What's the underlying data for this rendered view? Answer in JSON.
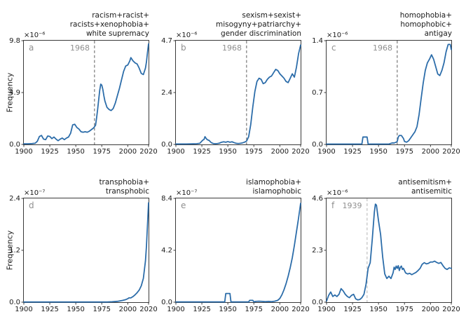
{
  "figure": {
    "ylabel": "Frequency",
    "line_color": "#2b6ca9",
    "axis_color": "#3a3a3a",
    "text_color": "#1a1a1a",
    "muted_color": "#8f8f8f",
    "x_ticks": [
      "1900",
      "1925",
      "1950",
      "1975",
      "2000",
      "2020"
    ],
    "xlim": [
      1900,
      2020
    ]
  },
  "chart_data": [
    {
      "type": "line",
      "letter": "a",
      "title_lines": [
        "racism+racist+",
        "racists+xenophobia+",
        "white supremacy"
      ],
      "exponent": "×10⁻⁶",
      "scale": 1e-06,
      "y_ticks": [
        "0.0",
        "4.9",
        "9.8"
      ],
      "ymax": 9.8,
      "vline_year": 1968,
      "vline_label": "1968",
      "vline_color": "#5a5a5a",
      "x": [
        1900,
        1904,
        1908,
        1911,
        1913,
        1915,
        1917,
        1919,
        1921,
        1923,
        1925,
        1927,
        1929,
        1931,
        1933,
        1935,
        1937,
        1939,
        1941,
        1943,
        1945,
        1947,
        1949,
        1951,
        1953,
        1955,
        1957,
        1959,
        1961,
        1963,
        1965,
        1967,
        1969,
        1970,
        1971,
        1972,
        1973,
        1974,
        1975,
        1976,
        1977,
        1978,
        1980,
        1982,
        1984,
        1986,
        1988,
        1990,
        1992,
        1994,
        1996,
        1998,
        2000,
        2002,
        2003,
        2005,
        2007,
        2009,
        2011,
        2013,
        2015,
        2017,
        2018,
        2019,
        2020
      ],
      "values": [
        0.06,
        0.06,
        0.08,
        0.12,
        0.3,
        0.75,
        0.85,
        0.5,
        0.45,
        0.8,
        0.75,
        0.55,
        0.7,
        0.5,
        0.35,
        0.5,
        0.6,
        0.45,
        0.6,
        0.7,
        1.05,
        1.85,
        1.9,
        1.6,
        1.45,
        1.2,
        1.15,
        1.2,
        1.15,
        1.25,
        1.4,
        1.55,
        1.8,
        2.5,
        3.3,
        4.2,
        5.1,
        5.7,
        5.6,
        5.2,
        4.6,
        4.1,
        3.5,
        3.3,
        3.2,
        3.4,
        3.9,
        4.6,
        5.3,
        6.1,
        6.9,
        7.4,
        7.5,
        7.9,
        8.2,
        7.9,
        7.7,
        7.6,
        7.2,
        6.7,
        6.6,
        7.2,
        7.8,
        8.7,
        9.5
      ]
    },
    {
      "type": "line",
      "letter": "b",
      "title_lines": [
        "sexism+sexist+",
        "misogyny+patriarchy+",
        "gender discrimination"
      ],
      "exponent": "×10⁻⁶",
      "scale": 1e-06,
      "y_ticks": [
        "0.0",
        "2.4",
        "4.7"
      ],
      "ymax": 4.7,
      "vline_year": 1968,
      "vline_label": "1968",
      "vline_color": "#5a5a5a",
      "x": [
        1900,
        1910,
        1920,
        1923,
        1925,
        1926,
        1927,
        1928,
        1929,
        1930,
        1932,
        1934,
        1936,
        1938,
        1940,
        1942,
        1944,
        1946,
        1948,
        1950,
        1952,
        1954,
        1956,
        1958,
        1960,
        1962,
        1964,
        1966,
        1968,
        1970,
        1972,
        1974,
        1976,
        1978,
        1980,
        1982,
        1984,
        1986,
        1988,
        1990,
        1992,
        1994,
        1996,
        1998,
        2000,
        2002,
        2004,
        2006,
        2008,
        2010,
        2012,
        2014,
        2016,
        2018,
        2020
      ],
      "values": [
        0.02,
        0.02,
        0.03,
        0.05,
        0.15,
        0.2,
        0.22,
        0.35,
        0.28,
        0.22,
        0.18,
        0.08,
        0.04,
        0.03,
        0.04,
        0.06,
        0.1,
        0.12,
        0.1,
        0.13,
        0.1,
        0.12,
        0.08,
        0.05,
        0.04,
        0.05,
        0.07,
        0.1,
        0.15,
        0.35,
        0.9,
        1.7,
        2.4,
        2.85,
        3.0,
        2.95,
        2.75,
        2.8,
        2.95,
        3.05,
        3.1,
        3.25,
        3.4,
        3.35,
        3.2,
        3.1,
        3.0,
        2.85,
        2.8,
        3.0,
        3.2,
        3.05,
        3.5,
        4.1,
        4.5
      ]
    },
    {
      "type": "line",
      "letter": "c",
      "title_lines": [
        "homophobia+",
        "homophobic+",
        "antigay"
      ],
      "exponent": "×10⁻⁶",
      "scale": 1e-06,
      "y_ticks": [
        "0.0",
        "0.7",
        "1.4"
      ],
      "ymax": 1.4,
      "vline_year": 1968,
      "vline_label": "1968",
      "vline_color": "#5a5a5a",
      "x": [
        1900,
        1920,
        1933,
        1934,
        1935,
        1939,
        1940,
        1941,
        1950,
        1960,
        1963,
        1965,
        1967,
        1968,
        1969,
        1970,
        1972,
        1974,
        1975,
        1977,
        1979,
        1981,
        1983,
        1985,
        1987,
        1989,
        1991,
        1993,
        1995,
        1997,
        1999,
        2001,
        2003,
        2005,
        2007,
        2009,
        2011,
        2013,
        2015,
        2017,
        2019,
        2020
      ],
      "values": [
        0.005,
        0.005,
        0.005,
        0.005,
        0.1,
        0.1,
        0.005,
        0.005,
        0.005,
        0.005,
        0.02,
        0.02,
        0.03,
        0.04,
        0.1,
        0.12,
        0.12,
        0.08,
        0.04,
        0.03,
        0.05,
        0.09,
        0.13,
        0.17,
        0.24,
        0.4,
        0.62,
        0.83,
        1.0,
        1.1,
        1.15,
        1.21,
        1.15,
        1.05,
        0.95,
        0.93,
        1.0,
        1.1,
        1.25,
        1.35,
        1.35,
        1.28
      ]
    },
    {
      "type": "line",
      "letter": "d",
      "title_lines": [
        "transphobia+",
        "transphobic"
      ],
      "exponent": "×10⁻⁷",
      "scale": 1e-07,
      "y_ticks": [
        "0.0",
        "1.2",
        "2.4"
      ],
      "ymax": 2.4,
      "vline_year": null,
      "vline_label": "",
      "vline_color": null,
      "x": [
        1900,
        1950,
        1980,
        1985,
        1990,
        1995,
        1998,
        2000,
        2001,
        2003,
        2005,
        2007,
        2009,
        2011,
        2013,
        2015,
        2017,
        2018,
        2019,
        2020
      ],
      "values": [
        0.005,
        0.005,
        0.005,
        0.01,
        0.02,
        0.04,
        0.06,
        0.08,
        0.1,
        0.1,
        0.13,
        0.17,
        0.22,
        0.28,
        0.38,
        0.55,
        0.95,
        1.3,
        1.8,
        2.3
      ]
    },
    {
      "type": "line",
      "letter": "e",
      "title_lines": [
        "islamophobia+",
        "islamophobic"
      ],
      "exponent": "×10⁻⁷",
      "scale": 1e-07,
      "y_ticks": [
        "0.0",
        "4.2",
        "8.4"
      ],
      "ymax": 8.4,
      "vline_year": null,
      "vline_label": "",
      "vline_color": null,
      "x": [
        1900,
        1945,
        1947,
        1948,
        1952,
        1953,
        1955,
        1965,
        1970,
        1971,
        1974,
        1975,
        1977,
        1980,
        1983,
        1986,
        1989,
        1992,
        1995,
        1998,
        2000,
        2002,
        2004,
        2006,
        2008,
        2010,
        2012,
        2014,
        2016,
        2018,
        2020
      ],
      "values": [
        0.02,
        0.02,
        0.02,
        0.7,
        0.7,
        0.02,
        0.02,
        0.02,
        0.02,
        0.15,
        0.15,
        0.03,
        0.06,
        0.08,
        0.06,
        0.04,
        0.06,
        0.04,
        0.08,
        0.15,
        0.3,
        0.6,
        1.0,
        1.5,
        2.1,
        2.8,
        3.6,
        4.6,
        5.7,
        6.8,
        8.0
      ]
    },
    {
      "type": "line",
      "letter": "f",
      "title_lines": [
        "antisemitism+",
        "antisemitic"
      ],
      "exponent": "×10⁻⁶",
      "scale": 1e-06,
      "y_ticks": [
        "0.0",
        "2.3",
        "4.6"
      ],
      "ymax": 4.6,
      "vline_year": 1939,
      "vline_label": "1939",
      "vline_color": "#b3b3b3",
      "x": [
        1900,
        1902,
        1904,
        1906,
        1908,
        1910,
        1912,
        1914,
        1916,
        1918,
        1920,
        1922,
        1924,
        1926,
        1928,
        1930,
        1932,
        1934,
        1936,
        1938,
        1940,
        1942,
        1944,
        1946,
        1947,
        1948,
        1950,
        1952,
        1954,
        1956,
        1958,
        1960,
        1962,
        1964,
        1965,
        1966,
        1967,
        1968,
        1969,
        1970,
        1971,
        1972,
        1973,
        1974,
        1976,
        1978,
        1980,
        1982,
        1984,
        1986,
        1988,
        1990,
        1992,
        1994,
        1996,
        1998,
        2000,
        2002,
        2004,
        2006,
        2008,
        2010,
        2012,
        2014,
        2016,
        2018,
        2020
      ],
      "values": [
        0.05,
        0.3,
        0.45,
        0.25,
        0.32,
        0.25,
        0.35,
        0.6,
        0.5,
        0.35,
        0.25,
        0.2,
        0.3,
        0.35,
        0.15,
        0.1,
        0.12,
        0.2,
        0.35,
        0.8,
        1.5,
        1.75,
        2.8,
        4.0,
        4.35,
        4.3,
        3.6,
        3.0,
        2.0,
        1.25,
        1.05,
        1.15,
        1.05,
        1.3,
        1.55,
        1.45,
        1.6,
        1.5,
        1.62,
        1.4,
        1.55,
        1.6,
        1.45,
        1.5,
        1.3,
        1.25,
        1.28,
        1.22,
        1.27,
        1.32,
        1.4,
        1.5,
        1.68,
        1.75,
        1.7,
        1.72,
        1.78,
        1.78,
        1.82,
        1.76,
        1.72,
        1.76,
        1.62,
        1.5,
        1.45,
        1.52,
        1.5
      ]
    }
  ]
}
